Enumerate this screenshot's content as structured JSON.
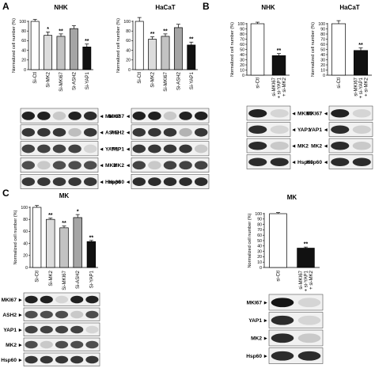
{
  "panels": {
    "A": "A",
    "B": "B",
    "C": "C"
  },
  "chart_data": [
    {
      "id": "A-NHK",
      "type": "bar",
      "title": "NHK",
      "ylabel": "Normalized cell number (%)",
      "ylim": [
        0,
        100
      ],
      "yticks": [
        0,
        20,
        40,
        60,
        80,
        100
      ],
      "categories": [
        "Si-Ctl",
        "Si-MK2",
        "Si-MKI67",
        "Si-ASH2",
        "Si-YAP1"
      ],
      "values": [
        100,
        71,
        69,
        85,
        47
      ],
      "errors": [
        4,
        7,
        5,
        6,
        6
      ],
      "fills": [
        "#ffffff",
        "#dcdcdc",
        "#c3c3c3",
        "#a5a5a5",
        "#111111"
      ],
      "stars": [
        "",
        "*",
        "**",
        "",
        "**"
      ]
    },
    {
      "id": "A-HaCaT",
      "type": "bar",
      "title": "HaCaT",
      "ylabel": "Normalized cell number (%)",
      "ylim": [
        0,
        100
      ],
      "yticks": [
        0,
        20,
        40,
        60,
        80,
        100
      ],
      "categories": [
        "Si-Ctl",
        "Si-MK2",
        "Si-MKI67",
        "Si-ASH2",
        "Si-YAP1"
      ],
      "values": [
        100,
        63,
        69,
        87,
        51
      ],
      "errors": [
        8,
        5,
        5,
        7,
        6
      ],
      "fills": [
        "#ffffff",
        "#dcdcdc",
        "#c3c3c3",
        "#a5a5a5",
        "#111111"
      ],
      "stars": [
        "",
        "**",
        "**",
        "",
        "**"
      ]
    },
    {
      "id": "B-NHK",
      "type": "bar",
      "title": "NHK",
      "ylabel": "Normalized cell number (%)",
      "ylim": [
        0,
        100
      ],
      "yticks": [
        0,
        10,
        20,
        30,
        40,
        50,
        60,
        70,
        80,
        90,
        100
      ],
      "categories": [
        "si-Ctl",
        "si-MKI67\n+ si-YAP1\n+ si-MK2"
      ],
      "values": [
        100,
        38
      ],
      "errors": [
        3,
        4
      ],
      "fills": [
        "#ffffff",
        "#111111"
      ],
      "stars": [
        "",
        "**"
      ]
    },
    {
      "id": "B-HaCaT",
      "type": "bar",
      "title": "HaCaT",
      "ylabel": "Normalized cell number (%)",
      "ylim": [
        0,
        100
      ],
      "yticks": [
        0,
        10,
        20,
        30,
        40,
        50,
        60,
        70,
        80,
        90,
        100
      ],
      "categories": [
        "si-Ctl",
        "si-MKI67\n+ si-YAP1\n+ si-MK2"
      ],
      "values": [
        100,
        48
      ],
      "errors": [
        6,
        5
      ],
      "fills": [
        "#ffffff",
        "#111111"
      ],
      "stars": [
        "",
        "**"
      ]
    },
    {
      "id": "C-MK-1",
      "type": "bar",
      "title": "MK",
      "ylabel": "Normalized cell number (%)",
      "ylim": [
        0,
        100
      ],
      "yticks": [
        0,
        20,
        40,
        60,
        80,
        100
      ],
      "categories": [
        "Si-Ctl",
        "Si-MK2",
        "Si-MKI67",
        "Si-ASH2",
        "Si-YAP1"
      ],
      "values": [
        100,
        80,
        66,
        83,
        43
      ],
      "errors": [
        3,
        2,
        3,
        5,
        2
      ],
      "fills": [
        "#ffffff",
        "#dcdcdc",
        "#c3c3c3",
        "#a5a5a5",
        "#111111"
      ],
      "stars": [
        "",
        "**",
        "**",
        "*",
        "**"
      ]
    },
    {
      "id": "C-MK-2",
      "type": "bar",
      "title": "MK",
      "ylabel": "Normalized cell number (%)",
      "ylim": [
        0,
        100
      ],
      "yticks": [
        0,
        10,
        20,
        30,
        40,
        50,
        60,
        70,
        80,
        90,
        100
      ],
      "categories": [
        "si-Ctl",
        "si-MKI67\n+ si-YAP1\n+ si-MK2"
      ],
      "values": [
        100,
        36
      ],
      "errors": [
        2,
        2
      ],
      "fills": [
        "#ffffff",
        "#111111"
      ],
      "stars": [
        "",
        "**"
      ]
    }
  ],
  "blots": [
    {
      "chart": "A-NHK",
      "label_side": "right",
      "arrow": "◄",
      "rows": [
        {
          "label": "MKI67",
          "lanes": [
            0.9,
            0.9,
            0.15,
            0.9,
            0.85
          ]
        },
        {
          "label": "ASH2",
          "lanes": [
            0.8,
            0.8,
            0.8,
            0.2,
            0.8
          ]
        },
        {
          "label": "YAP1",
          "lanes": [
            0.75,
            0.75,
            0.75,
            0.75,
            0.1
          ]
        },
        {
          "label": "MK2",
          "lanes": [
            0.7,
            0.15,
            0.7,
            0.7,
            0.7
          ]
        },
        {
          "label": "Hsp60",
          "lanes": [
            0.8,
            0.8,
            0.8,
            0.8,
            0.8
          ]
        }
      ]
    },
    {
      "chart": "A-HaCaT",
      "label_side": "left",
      "arrow": "◄",
      "rows": [
        {
          "label": "MKI67",
          "lanes": [
            0.9,
            0.9,
            0.15,
            0.9,
            0.9
          ]
        },
        {
          "label": "ASH2",
          "lanes": [
            0.8,
            0.8,
            0.8,
            0.25,
            0.8
          ]
        },
        {
          "label": "YAP1",
          "lanes": [
            0.8,
            0.8,
            0.8,
            0.8,
            0.15
          ]
        },
        {
          "label": "MK2",
          "lanes": [
            0.75,
            0.15,
            0.75,
            0.75,
            0.75
          ]
        },
        {
          "label": "Hsp60",
          "lanes": [
            0.85,
            0.85,
            0.85,
            0.85,
            0.85
          ]
        }
      ]
    },
    {
      "chart": "B-NHK",
      "label_side": "right",
      "arrow": "◄",
      "rows": [
        {
          "label": "MKI67",
          "lanes": [
            0.9,
            0.1
          ]
        },
        {
          "label": "YAP1",
          "lanes": [
            0.85,
            0.1
          ]
        },
        {
          "label": "MK2",
          "lanes": [
            0.85,
            0.15
          ]
        },
        {
          "label": "Hsp60",
          "lanes": [
            0.85,
            0.85
          ]
        }
      ]
    },
    {
      "chart": "B-HaCaT",
      "label_side": "left",
      "arrow": "◄",
      "rows": [
        {
          "label": "MKI67",
          "lanes": [
            0.9,
            0.1
          ]
        },
        {
          "label": "YAP1",
          "lanes": [
            0.85,
            0.12
          ]
        },
        {
          "label": "MK2",
          "lanes": [
            0.85,
            0.15
          ]
        },
        {
          "label": "Hsp60",
          "lanes": [
            0.85,
            0.85
          ]
        }
      ]
    },
    {
      "chart": "C-MK-1",
      "label_side": "left",
      "arrow": "►",
      "rows": [
        {
          "label": "MKI67",
          "lanes": [
            0.9,
            0.9,
            0.1,
            0.9,
            0.9
          ]
        },
        {
          "label": "ASH2",
          "lanes": [
            0.7,
            0.7,
            0.7,
            0.15,
            0.7
          ]
        },
        {
          "label": "YAP1",
          "lanes": [
            0.75,
            0.75,
            0.75,
            0.75,
            0.1
          ]
        },
        {
          "label": "MK2",
          "lanes": [
            0.7,
            0.15,
            0.7,
            0.7,
            0.7
          ]
        },
        {
          "label": "Hsp60",
          "lanes": [
            0.8,
            0.8,
            0.8,
            0.8,
            0.8
          ]
        }
      ]
    },
    {
      "chart": "C-MK-2",
      "label_side": "left",
      "arrow": "►",
      "rows": [
        {
          "label": "MKI67",
          "lanes": [
            0.95,
            0.1
          ]
        },
        {
          "label": "YAP1",
          "lanes": [
            0.85,
            0.1
          ]
        },
        {
          "label": "MK2",
          "lanes": [
            0.85,
            0.15
          ]
        },
        {
          "label": "Hsp60",
          "lanes": [
            0.85,
            0.85
          ]
        }
      ]
    }
  ]
}
